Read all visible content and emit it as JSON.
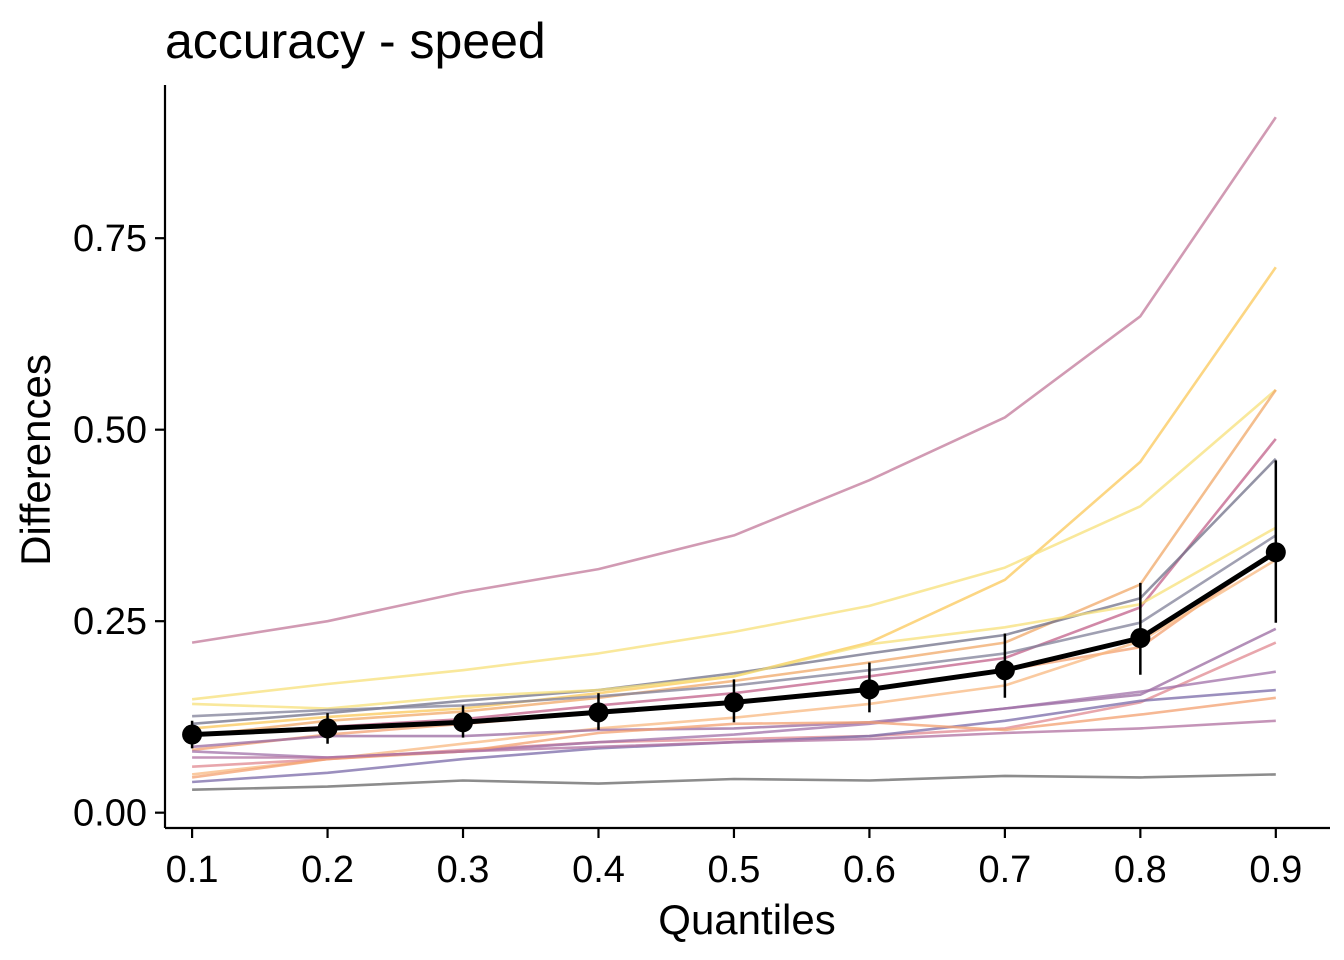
{
  "chart_data": {
    "type": "line",
    "title": "accuracy - speed",
    "xlabel": "Quantiles",
    "ylabel": "Differences",
    "x": [
      0.1,
      0.2,
      0.3,
      0.4,
      0.5,
      0.6,
      0.7,
      0.8,
      0.9
    ],
    "x_ticks": [
      "0.1",
      "0.2",
      "0.3",
      "0.4",
      "0.5",
      "0.6",
      "0.7",
      "0.8",
      "0.9"
    ],
    "y_ticks": [
      "0.00",
      "0.25",
      "0.50",
      "0.75"
    ],
    "y_tick_values": [
      0.0,
      0.25,
      0.5,
      0.75
    ],
    "xlim": [
      0.08,
      0.94
    ],
    "ylim": [
      -0.02,
      0.95
    ],
    "grid": false,
    "legend": "none",
    "individual_series": [
      {
        "color": "#c2789a",
        "values": [
          0.222,
          0.25,
          0.288,
          0.318,
          0.362,
          0.434,
          0.516,
          0.648,
          0.908
        ]
      },
      {
        "color": "#fbc85a",
        "values": [
          0.11,
          0.125,
          0.136,
          0.156,
          0.178,
          0.222,
          0.304,
          0.458,
          0.712
        ]
      },
      {
        "color": "#f7e07a",
        "values": [
          0.148,
          0.168,
          0.186,
          0.208,
          0.236,
          0.27,
          0.32,
          0.4,
          0.552
        ]
      },
      {
        "color": "#f0a868",
        "values": [
          0.1,
          0.12,
          0.132,
          0.15,
          0.172,
          0.196,
          0.222,
          0.298,
          0.552
        ]
      },
      {
        "color": "#c2608a",
        "values": [
          0.102,
          0.112,
          0.122,
          0.14,
          0.156,
          0.178,
          0.202,
          0.268,
          0.488
        ]
      },
      {
        "color": "#707088",
        "values": [
          0.116,
          0.13,
          0.146,
          0.16,
          0.182,
          0.208,
          0.232,
          0.28,
          0.462
        ]
      },
      {
        "color": "#f7e07a",
        "values": [
          0.142,
          0.136,
          0.152,
          0.16,
          0.178,
          0.22,
          0.242,
          0.272,
          0.372
        ]
      },
      {
        "color": "#808098",
        "values": [
          0.126,
          0.134,
          0.14,
          0.152,
          0.166,
          0.186,
          0.208,
          0.248,
          0.362
        ]
      },
      {
        "color": "#f3a070",
        "values": [
          0.082,
          0.102,
          0.116,
          0.13,
          0.144,
          0.162,
          0.186,
          0.216,
          0.342
        ]
      },
      {
        "color": "#f8b880",
        "values": [
          0.05,
          0.07,
          0.09,
          0.11,
          0.124,
          0.142,
          0.166,
          0.224,
          0.33
        ]
      },
      {
        "color": "#9a6aa0",
        "values": [
          0.086,
          0.1,
          0.1,
          0.108,
          0.11,
          0.118,
          0.136,
          0.154,
          0.24
        ]
      },
      {
        "color": "#e08890",
        "values": [
          0.06,
          0.07,
          0.082,
          0.092,
          0.096,
          0.1,
          0.11,
          0.144,
          0.222
        ]
      },
      {
        "color": "#a070a8",
        "values": [
          0.08,
          0.072,
          0.08,
          0.092,
          0.102,
          0.116,
          0.136,
          0.158,
          0.184
        ]
      },
      {
        "color": "#7a6aa8",
        "values": [
          0.04,
          0.052,
          0.07,
          0.084,
          0.092,
          0.1,
          0.12,
          0.146,
          0.16
        ]
      },
      {
        "color": "#f3a070",
        "values": [
          0.046,
          0.07,
          0.08,
          0.104,
          0.116,
          0.118,
          0.108,
          0.128,
          0.15
        ]
      },
      {
        "color": "#b070a0",
        "values": [
          0.072,
          0.072,
          0.08,
          0.086,
          0.092,
          0.096,
          0.104,
          0.11,
          0.12
        ]
      },
      {
        "color": "#666666",
        "values": [
          0.03,
          0.034,
          0.042,
          0.038,
          0.044,
          0.042,
          0.048,
          0.046,
          0.05
        ]
      }
    ],
    "mean_series": {
      "color": "#000000",
      "values": [
        0.102,
        0.11,
        0.118,
        0.131,
        0.144,
        0.161,
        0.186,
        0.228,
        0.34
      ],
      "error_low": [
        0.084,
        0.09,
        0.098,
        0.108,
        0.118,
        0.131,
        0.15,
        0.18,
        0.248
      ],
      "error_high": [
        0.12,
        0.13,
        0.14,
        0.156,
        0.174,
        0.196,
        0.234,
        0.3,
        0.46
      ]
    }
  }
}
